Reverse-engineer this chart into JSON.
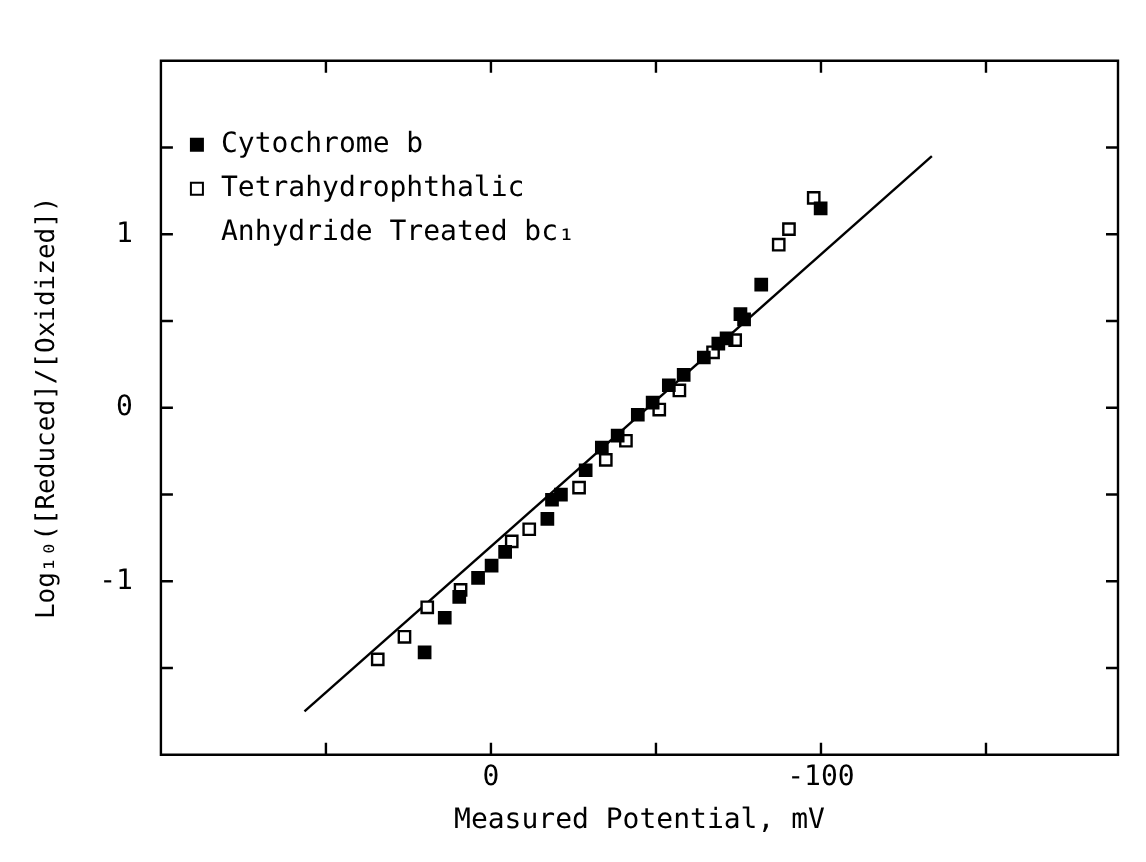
{
  "chart_data": {
    "type": "scatter",
    "xlabel": "Measured Potential, mV",
    "ylabel": "Log₁₀([Reduced]/[Oxidized])",
    "xlim": [
      100,
      -190
    ],
    "xticks": [
      {
        "value": 50,
        "label": null
      },
      0,
      {
        "value": -50,
        "label": null
      },
      -100,
      {
        "value": -150,
        "label": null
      }
    ],
    "ylim": [
      -2,
      2
    ],
    "yticks": [
      {
        "value": -1.5,
        "label": null
      },
      -1,
      {
        "value": -0.5,
        "label": null
      },
      0,
      {
        "value": 0.5,
        "label": null
      },
      1,
      {
        "value": 1.5,
        "label": null
      }
    ],
    "grid": false,
    "legend": "top left",
    "marker": "square",
    "series": [
      {
        "name": "Cytochrome b",
        "color": "#000000",
        "x": [
          20.1,
          14,
          9.6,
          3.9,
          -0.2,
          -4.3,
          -17.1,
          -18.5,
          -21.2,
          -28.7,
          -33.6,
          -38.4,
          -44.5,
          -49,
          -53.9,
          -58.4,
          -64.5,
          -68.9,
          -71.4,
          -75.6,
          -76.7,
          -81.9,
          -99.9
        ],
        "values": [
          -1.41,
          -1.21,
          -1.09,
          -0.98,
          -0.91,
          -0.83,
          -0.64,
          -0.53,
          -0.5,
          -0.36,
          -0.23,
          -0.16,
          -0.04,
          0.03,
          0.13,
          0.19,
          0.29,
          0.37,
          0.4,
          0.54,
          0.51,
          0.71,
          1.15
        ]
      },
      {
        "name": "Tetrahydrophthalic Anhydride Treated bc₁",
        "color": "#ffffff",
        "x": [
          34.3,
          26.2,
          19.3,
          9.2,
          -6.3,
          -11.6,
          -26.7,
          -34.8,
          -40.9,
          -51,
          -57.1,
          -67.3,
          -74,
          -87.2,
          -90.3,
          -97.8
        ],
        "values": [
          -1.45,
          -1.32,
          -1.15,
          -1.05,
          -0.77,
          -0.7,
          -0.46,
          -0.3,
          -0.19,
          -0.01,
          0.1,
          0.32,
          0.39,
          0.94,
          1.03,
          1.21
        ]
      },
      {
        "type": "line",
        "marker": "none",
        "color": "#000000",
        "x": [
          56.5,
          -133.6
        ],
        "values": [
          -1.75,
          1.45
        ]
      }
    ]
  }
}
